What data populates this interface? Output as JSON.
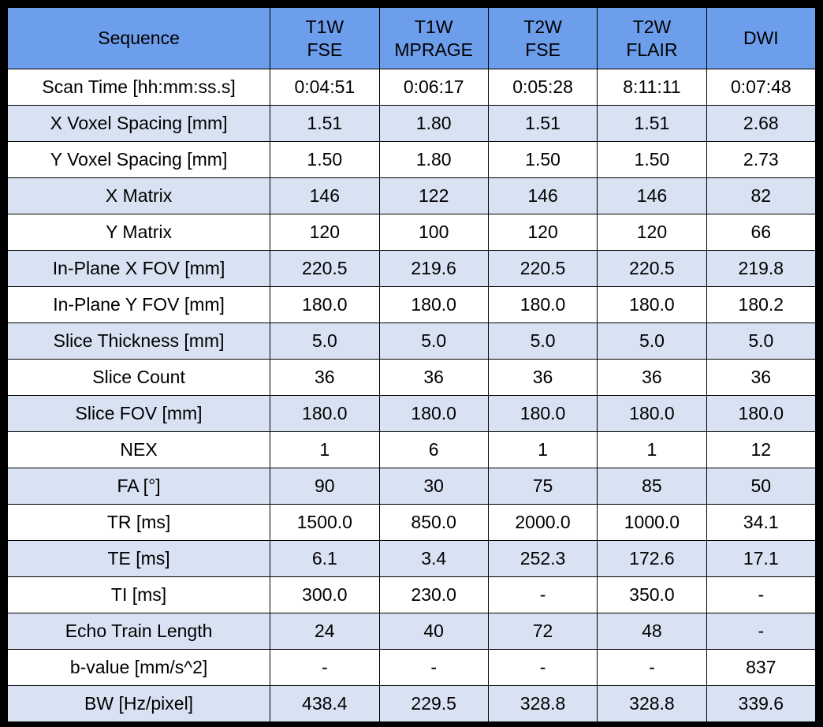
{
  "colors": {
    "header_bg": "#6d9eeb",
    "row_bg": "#ffffff",
    "row_alt_bg": "#d9e2f3",
    "border": "#000000",
    "text": "#000000"
  },
  "chart_data": {
    "type": "table",
    "columns": [
      "Sequence",
      "T1W\nFSE",
      "T1W\nMPRAGE",
      "T2W\nFSE",
      "T2W\nFLAIR",
      "DWI"
    ],
    "rows": [
      {
        "label": "Scan Time [hh:mm:ss.s]",
        "values": [
          "0:04:51",
          "0:06:17",
          "0:05:28",
          "8:11:11",
          "0:07:48"
        ]
      },
      {
        "label": "X Voxel Spacing [mm]",
        "values": [
          "1.51",
          "1.80",
          "1.51",
          "1.51",
          "2.68"
        ]
      },
      {
        "label": "Y Voxel Spacing [mm]",
        "values": [
          "1.50",
          "1.80",
          "1.50",
          "1.50",
          "2.73"
        ]
      },
      {
        "label": "X Matrix",
        "values": [
          "146",
          "122",
          "146",
          "146",
          "82"
        ]
      },
      {
        "label": "Y Matrix",
        "values": [
          "120",
          "100",
          "120",
          "120",
          "66"
        ]
      },
      {
        "label": "In-Plane X FOV [mm]",
        "values": [
          "220.5",
          "219.6",
          "220.5",
          "220.5",
          "219.8"
        ]
      },
      {
        "label": "In-Plane Y FOV [mm]",
        "values": [
          "180.0",
          "180.0",
          "180.0",
          "180.0",
          "180.2"
        ]
      },
      {
        "label": "Slice Thickness [mm]",
        "values": [
          "5.0",
          "5.0",
          "5.0",
          "5.0",
          "5.0"
        ]
      },
      {
        "label": "Slice Count",
        "values": [
          "36",
          "36",
          "36",
          "36",
          "36"
        ]
      },
      {
        "label": "Slice FOV [mm]",
        "values": [
          "180.0",
          "180.0",
          "180.0",
          "180.0",
          "180.0"
        ]
      },
      {
        "label": "NEX",
        "values": [
          "1",
          "6",
          "1",
          "1",
          "12"
        ]
      },
      {
        "label": "FA [°]",
        "values": [
          "90",
          "30",
          "75",
          "85",
          "50"
        ]
      },
      {
        "label": "TR [ms]",
        "values": [
          "1500.0",
          "850.0",
          "2000.0",
          "1000.0",
          "34.1"
        ]
      },
      {
        "label": "TE [ms]",
        "values": [
          "6.1",
          "3.4",
          "252.3",
          "172.6",
          "17.1"
        ]
      },
      {
        "label": "TI [ms]",
        "values": [
          "300.0",
          "230.0",
          "-",
          "350.0",
          "-"
        ]
      },
      {
        "label": "Echo Train Length",
        "values": [
          "24",
          "40",
          "72",
          "48",
          "-"
        ]
      },
      {
        "label": "b-value [mm/s^2]",
        "values": [
          "-",
          "-",
          "-",
          "-",
          "837"
        ]
      },
      {
        "label": "BW [Hz/pixel]",
        "values": [
          "438.4",
          "229.5",
          "328.8",
          "328.8",
          "339.6"
        ]
      }
    ]
  }
}
